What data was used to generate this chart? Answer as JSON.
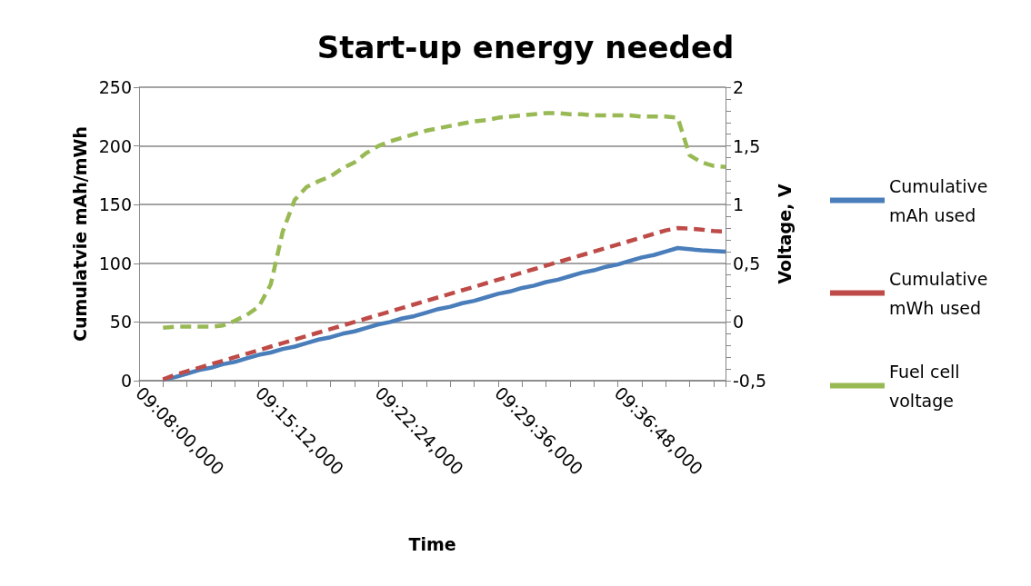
{
  "chart_data": {
    "type": "line",
    "title": "Start-up energy needed",
    "xlabel": "Time",
    "ylabel": "Cumulatvie mAh/mWh",
    "y2label": "Voltage, V",
    "categories": [
      "09:08:00,000",
      null,
      null,
      null,
      null,
      null,
      null,
      null,
      null,
      null,
      "09:15:12,000",
      null,
      null,
      null,
      null,
      null,
      null,
      null,
      null,
      null,
      "09:22:24,000",
      null,
      null,
      null,
      null,
      null,
      null,
      null,
      null,
      null,
      "09:29:36,000",
      null,
      null,
      null,
      null,
      null,
      null,
      null,
      null,
      null,
      "09:36:48,000",
      null,
      null,
      null,
      null,
      null,
      null,
      null,
      null,
      null
    ],
    "ylim": [
      0,
      250
    ],
    "yticks": [
      0,
      50,
      100,
      150,
      200,
      250
    ],
    "y2lim": [
      -0.5,
      2
    ],
    "y2ticks": [
      {
        "value": -0.5,
        "label": "-0,5"
      },
      {
        "value": -0.4,
        "label": null
      },
      {
        "value": -0.3,
        "label": null
      },
      {
        "value": -0.2,
        "label": null
      },
      {
        "value": -0.1,
        "label": null
      },
      {
        "value": 0,
        "label": "0"
      },
      {
        "value": 0.1,
        "label": null
      },
      {
        "value": 0.2,
        "label": null
      },
      {
        "value": 0.3,
        "label": null
      },
      {
        "value": 0.4,
        "label": null
      },
      {
        "value": 0.5,
        "label": "0,5"
      },
      {
        "value": 0.6,
        "label": null
      },
      {
        "value": 0.7,
        "label": null
      },
      {
        "value": 0.8,
        "label": null
      },
      {
        "value": 0.9,
        "label": null
      },
      {
        "value": 1,
        "label": "1"
      },
      {
        "value": 1.1,
        "label": null
      },
      {
        "value": 1.2,
        "label": null
      },
      {
        "value": 1.3,
        "label": null
      },
      {
        "value": 1.4,
        "label": null
      },
      {
        "value": 1.5,
        "label": "1,5"
      },
      {
        "value": 1.6,
        "label": null
      },
      {
        "value": 1.7,
        "label": null
      },
      {
        "value": 1.8,
        "label": null
      },
      {
        "value": 1.9,
        "label": null
      },
      {
        "value": 2,
        "label": "2"
      }
    ],
    "grid": "y",
    "legend": "right",
    "marker": "none",
    "series": [
      {
        "name": "Cumulative mAh used",
        "color": "#4a7ebb",
        "line_style": "solid",
        "values": [
          null,
          null,
          1,
          3,
          6,
          9,
          11,
          14,
          16,
          19,
          22,
          24,
          27,
          29,
          32,
          35,
          37,
          40,
          42,
          45,
          48,
          50,
          53,
          55,
          58,
          61,
          63,
          66,
          68,
          71,
          74,
          76,
          79,
          81,
          84,
          86,
          89,
          92,
          94,
          97,
          99,
          102,
          105,
          107,
          110,
          113,
          112,
          111,
          110.5,
          110
        ]
      },
      {
        "name": "Cumulative mWh used",
        "color": "#be4b48",
        "line_style": "dashed",
        "values": [
          null,
          null,
          1,
          5,
          8,
          11,
          14,
          17,
          20,
          23,
          26,
          29,
          32,
          35,
          38,
          41,
          44,
          47,
          50,
          53,
          56,
          59,
          62,
          65,
          68,
          71,
          74,
          77,
          80,
          83,
          86,
          89,
          92,
          95,
          98,
          101,
          104,
          107,
          110,
          113,
          116,
          119,
          122,
          125,
          128,
          130,
          129.6,
          128.7,
          127.5,
          127
        ]
      },
      {
        "name": "Fuel cell voltage",
        "color": "#98b954",
        "line_style": "dashed",
        "axis": "y2",
        "values": [
          null,
          null,
          -0.05,
          -0.04,
          -0.04,
          -0.04,
          -0.04,
          -0.03,
          0.01,
          0.06,
          0.13,
          0.32,
          0.77,
          1.04,
          1.15,
          1.2,
          1.24,
          1.31,
          1.36,
          1.44,
          1.5,
          1.54,
          1.57,
          1.6,
          1.63,
          1.65,
          1.67,
          1.69,
          1.71,
          1.72,
          1.74,
          1.75,
          1.76,
          1.77,
          1.78,
          1.78,
          1.77,
          1.77,
          1.76,
          1.76,
          1.76,
          1.76,
          1.75,
          1.75,
          1.75,
          1.74,
          1.42,
          1.36,
          1.33,
          1.32
        ]
      }
    ]
  }
}
